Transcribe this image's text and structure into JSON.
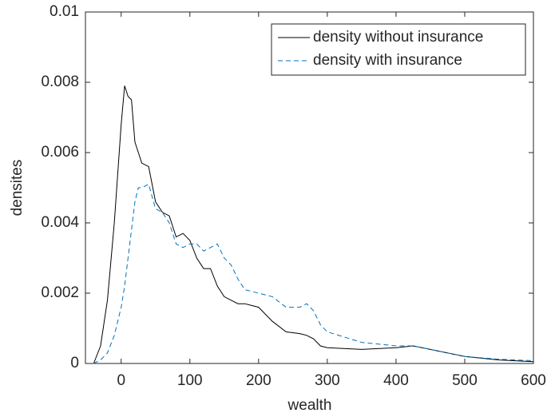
{
  "chart_data": {
    "type": "line",
    "xlabel": "wealth",
    "ylabel": "densites",
    "x": [
      -40,
      -30,
      -20,
      -10,
      0,
      5,
      10,
      15,
      20,
      25,
      30,
      40,
      50,
      60,
      70,
      80,
      90,
      100,
      110,
      120,
      130,
      140,
      150,
      160,
      170,
      180,
      200,
      220,
      240,
      260,
      270,
      280,
      290,
      300,
      350,
      400,
      425,
      450,
      500,
      550,
      600
    ],
    "series": [
      {
        "name": "density without insurance",
        "color": "#000000",
        "dash": false,
        "values": [
          0,
          0.0005,
          0.0018,
          0.004,
          0.0068,
          0.0079,
          0.0076,
          0.0075,
          0.0063,
          0.006,
          0.0057,
          0.0056,
          0.0046,
          0.0043,
          0.0042,
          0.0036,
          0.0037,
          0.0035,
          0.003,
          0.0027,
          0.0027,
          0.0022,
          0.0019,
          0.0018,
          0.0017,
          0.0017,
          0.0016,
          0.0012,
          0.0009,
          0.00085,
          0.0008,
          0.0007,
          0.0005,
          0.00045,
          0.0004,
          0.00045,
          0.0005,
          0.0004,
          0.0002,
          0.0001,
          5e-05
        ]
      },
      {
        "name": "density with insurance",
        "color": "#0072bd",
        "dash": true,
        "values": [
          0,
          0.0001,
          0.0003,
          0.0008,
          0.0016,
          0.0022,
          0.003,
          0.0038,
          0.0046,
          0.005,
          0.005,
          0.0051,
          0.0044,
          0.0043,
          0.004,
          0.0034,
          0.0033,
          0.0034,
          0.0034,
          0.0032,
          0.0033,
          0.0034,
          0.003,
          0.0028,
          0.0024,
          0.0021,
          0.002,
          0.0019,
          0.0016,
          0.0016,
          0.0017,
          0.0015,
          0.0011,
          0.0009,
          0.0006,
          0.0005,
          0.0005,
          0.0004,
          0.0002,
          0.00012,
          8e-05
        ]
      }
    ],
    "xlim": [
      -52,
      600
    ],
    "xticks": [
      0,
      100,
      200,
      300,
      400,
      500,
      600
    ],
    "ylim": [
      0,
      0.01
    ],
    "yticks": [
      0,
      0.002,
      0.004,
      0.006,
      0.008,
      0.01
    ],
    "legend": "upper right",
    "grid": false
  }
}
